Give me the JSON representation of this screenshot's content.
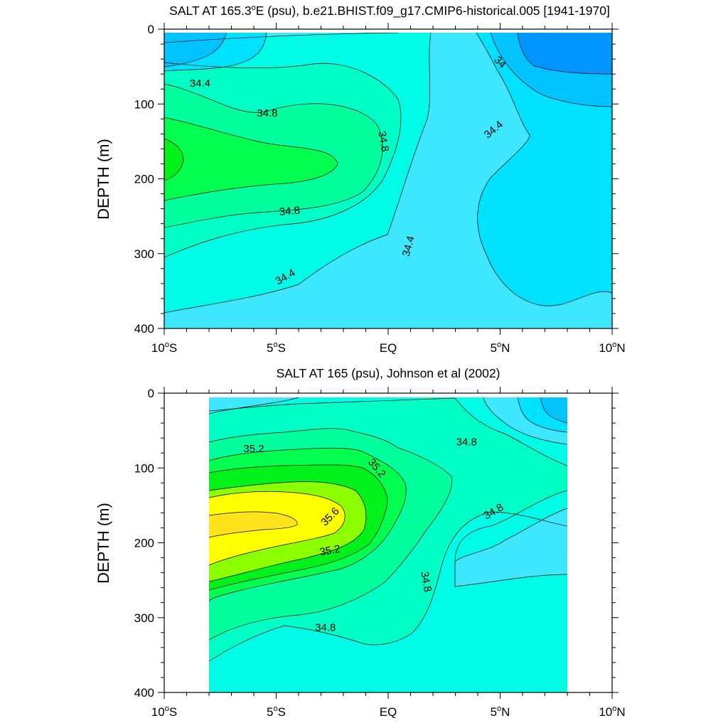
{
  "chart_data": [
    {
      "type": "contour",
      "title_main": "SALT AT 165.3",
      "title_degree": "o",
      "title_rest": "E (psu), b.e21.BHIST.f09_g17.CMIP6-historical.005 [1941-1970]",
      "ylabel": "DEPTH (m)",
      "xlim": [
        -10,
        10
      ],
      "ylim": [
        400,
        0
      ],
      "yticks": [
        "0",
        "100",
        "200",
        "300",
        "400"
      ],
      "xticks": [
        {
          "num": "10",
          "deg": "o",
          "hemi": "S"
        },
        {
          "num": "5",
          "deg": "o",
          "hemi": "S"
        },
        {
          "num": "EQ",
          "deg": "",
          "hemi": ""
        },
        {
          "num": "5",
          "deg": "o",
          "hemi": "N"
        },
        {
          "num": "10",
          "deg": "o",
          "hemi": "N"
        }
      ],
      "data_xlim": [
        -10,
        10
      ],
      "contour_interval": 0.2,
      "contour_labels": [
        {
          "text": "34.4",
          "x": -8.4,
          "y": 72,
          "angle": 0
        },
        {
          "text": "34.8",
          "x": -5.4,
          "y": 112,
          "angle": 0
        },
        {
          "text": "34.8",
          "x": -0.2,
          "y": 150,
          "angle": 80
        },
        {
          "text": "34",
          "x": 5.0,
          "y": 44,
          "angle": 45
        },
        {
          "text": "34.4",
          "x": 4.7,
          "y": 134,
          "angle": -40
        },
        {
          "text": "34.8",
          "x": -4.4,
          "y": 243,
          "angle": -5
        },
        {
          "text": "34.4",
          "x": 0.9,
          "y": 290,
          "angle": -75
        },
        {
          "text": "34.4",
          "x": -4.6,
          "y": 331,
          "angle": -30
        }
      ]
    },
    {
      "type": "contour",
      "title_main": "SALT AT 165 (psu), Johnson et al (2002)",
      "title_degree": "",
      "title_rest": "",
      "ylabel": "DEPTH (m)",
      "xlim": [
        -10,
        10
      ],
      "ylim": [
        400,
        0
      ],
      "yticks": [
        "0",
        "100",
        "200",
        "300",
        "400"
      ],
      "xticks": [
        {
          "num": "10",
          "deg": "o",
          "hemi": "S"
        },
        {
          "num": "5",
          "deg": "o",
          "hemi": "S"
        },
        {
          "num": "EQ",
          "deg": "",
          "hemi": ""
        },
        {
          "num": "5",
          "deg": "o",
          "hemi": "N"
        },
        {
          "num": "10",
          "deg": "o",
          "hemi": "N"
        }
      ],
      "data_xlim": [
        -8,
        8
      ],
      "contour_interval": 0.2,
      "contour_labels": [
        {
          "text": "35.2",
          "x": -6.0,
          "y": 74,
          "angle": 0
        },
        {
          "text": "35.2",
          "x": -0.5,
          "y": 100,
          "angle": 50
        },
        {
          "text": "34.8",
          "x": 3.5,
          "y": 65,
          "angle": 0
        },
        {
          "text": "35.6",
          "x": -2.6,
          "y": 165,
          "angle": -45
        },
        {
          "text": "34.8",
          "x": 4.7,
          "y": 158,
          "angle": -30
        },
        {
          "text": "35.2",
          "x": -2.6,
          "y": 210,
          "angle": -10
        },
        {
          "text": "34.8",
          "x": 1.7,
          "y": 252,
          "angle": 80
        },
        {
          "text": "34.8",
          "x": -2.8,
          "y": 313,
          "angle": 0
        }
      ]
    }
  ],
  "colors": {
    "band_33_8": "#0095ff",
    "band_34_0": "#00c3ff",
    "band_34_2": "#00e1ff",
    "band_34_4": "#3de8ff",
    "band_34_6": "#00fbe6",
    "band_34_8": "#00ffc4",
    "band_35_0": "#00ff9d",
    "band_35_2": "#00ff4f",
    "band_35_4": "#00f21a",
    "band_35_6": "#8cff00",
    "band_35_8": "#ffff00",
    "band_36_0": "#ffe21a"
  }
}
